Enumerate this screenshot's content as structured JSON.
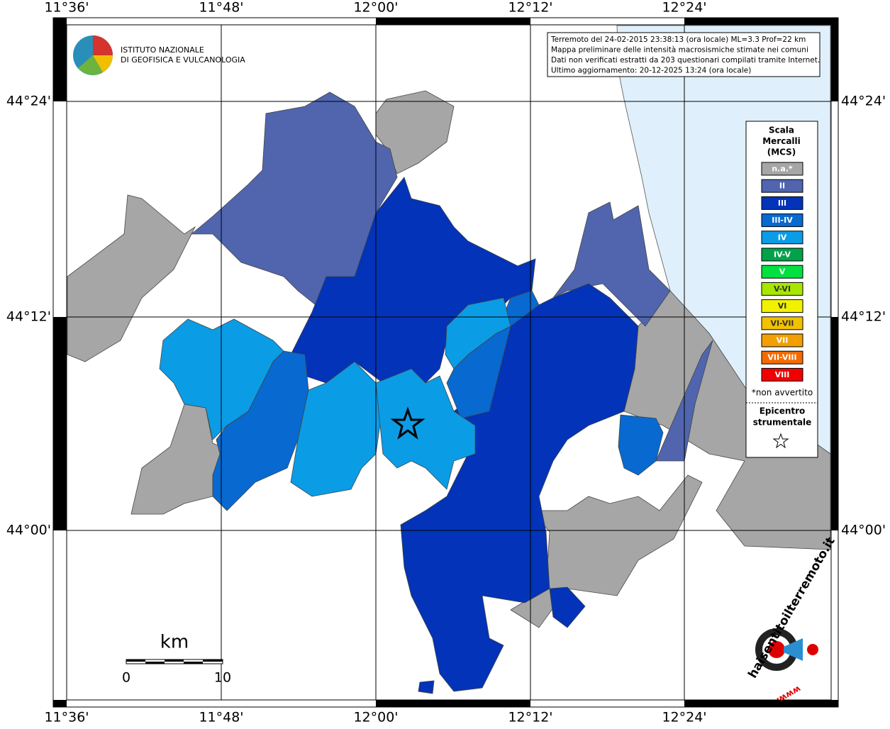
{
  "map": {
    "lon_labels": [
      "11°36'",
      "11°48'",
      "12°00'",
      "12°12'",
      "12°24'"
    ],
    "lat_labels": [
      "44°24'",
      "44°12'",
      "44°00'"
    ],
    "info": [
      "Terremoto del 24-02-2015 23:38:13 (ora locale) ML=3.3 Prof=22 km",
      "Mappa preliminare delle intensità macrosismiche stimate nei comuni",
      "Dati non verificati estratti da 203 questionari compilati tramite Internet.",
      "Ultimo aggiornamento: 20-12-2025 13:24 (ora locale)"
    ],
    "institute": [
      "ISTITUTO NAZIONALE",
      "DI GEOFISICA E VULCANOLOGIA"
    ],
    "legend": {
      "title": [
        "Scala",
        "Mercalli",
        "(MCS)"
      ],
      "items": [
        {
          "label": "n.a.*",
          "color": "#a6a6a6"
        },
        {
          "label": "II",
          "color": "#5065ae"
        },
        {
          "label": "III",
          "color": "#0233b8"
        },
        {
          "label": "III-IV",
          "color": "#0869d0"
        },
        {
          "label": "IV",
          "color": "#0b9ce6"
        },
        {
          "label": "IV-V",
          "color": "#00a24a"
        },
        {
          "label": "V",
          "color": "#00e040"
        },
        {
          "label": "V-VI",
          "color": "#a8e600"
        },
        {
          "label": "VI",
          "color": "#f2f200"
        },
        {
          "label": "VI-VII",
          "color": "#f2c200"
        },
        {
          "label": "VII",
          "color": "#f2a000"
        },
        {
          "label": "VII-VIII",
          "color": "#f26a00"
        },
        {
          "label": "VIII",
          "color": "#f20000"
        }
      ],
      "note": "*non avvertito",
      "epicenter": [
        "Epicentro",
        "strumentale"
      ]
    },
    "scale_bar": {
      "unit": "km",
      "labels": [
        "0",
        "10"
      ]
    },
    "site_logo": {
      "name": "haisentitoilterremoto.it",
      "prefix": "www."
    }
  }
}
